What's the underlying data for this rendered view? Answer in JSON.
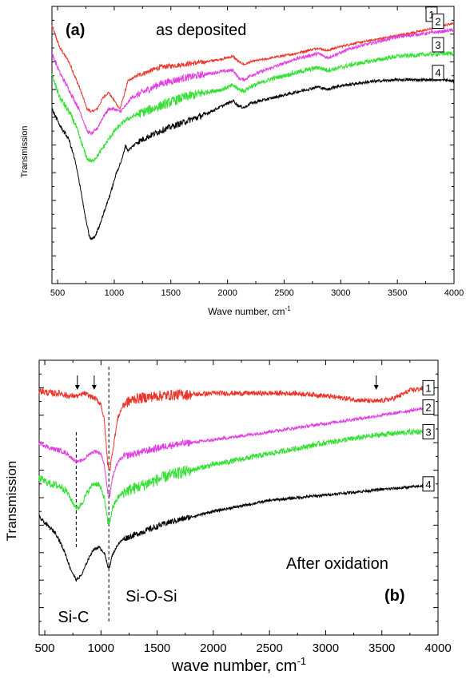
{
  "chart_data": [
    {
      "type": "line",
      "panel_label": "(a)",
      "annotation": "as deposited",
      "xlabel": "Wave number, cm",
      "xlabel_sup": "-1",
      "ylabel": "Transmission",
      "xlim": [
        450,
        4000
      ],
      "ylim": [
        0,
        100
      ],
      "x_ticks": [
        500,
        1000,
        1500,
        2000,
        2500,
        3000,
        3500,
        4000
      ],
      "x_tick_labels": [
        "500",
        "1000",
        "1500",
        "2000",
        "2500",
        "3000",
        "3500",
        "4000"
      ],
      "y_tick_labels_shown": false,
      "grid": false,
      "series": [
        {
          "name": "1",
          "color": "#e8352b",
          "points": [
            [
              450,
              93
            ],
            [
              520,
              85
            ],
            [
              600,
              80
            ],
            [
              650,
              75
            ],
            [
              700,
              70
            ],
            [
              760,
              63
            ],
            [
              800,
              62
            ],
            [
              850,
              63
            ],
            [
              900,
              67
            ],
            [
              950,
              69
            ],
            [
              1000,
              66
            ],
            [
              1050,
              63
            ],
            [
              1080,
              67
            ],
            [
              1120,
              73
            ],
            [
              1200,
              75
            ],
            [
              1400,
              78
            ],
            [
              1600,
              79
            ],
            [
              1800,
              80
            ],
            [
              1950,
              81
            ],
            [
              2050,
              82
            ],
            [
              2100,
              80
            ],
            [
              2150,
              79
            ],
            [
              2200,
              80
            ],
            [
              2400,
              81.5
            ],
            [
              2600,
              83
            ],
            [
              2800,
              85
            ],
            [
              2880,
              84
            ],
            [
              2950,
              85
            ],
            [
              3100,
              86.5
            ],
            [
              3300,
              88
            ],
            [
              3500,
              89.5
            ],
            [
              3700,
              91
            ],
            [
              3900,
              93
            ],
            [
              4000,
              94
            ]
          ],
          "noise": 0.4
        },
        {
          "name": "2",
          "color": "#e040e0",
          "points": [
            [
              450,
              83
            ],
            [
              520,
              76
            ],
            [
              600,
              70
            ],
            [
              650,
              66
            ],
            [
              700,
              62
            ],
            [
              760,
              55
            ],
            [
              800,
              54
            ],
            [
              850,
              56
            ],
            [
              900,
              60
            ],
            [
              950,
              63
            ],
            [
              1000,
              63
            ],
            [
              1050,
              62
            ],
            [
              1100,
              64
            ],
            [
              1150,
              67
            ],
            [
              1200,
              68
            ],
            [
              1400,
              72
            ],
            [
              1600,
              74
            ],
            [
              1800,
              75.5
            ],
            [
              1950,
              76.5
            ],
            [
              2050,
              77
            ],
            [
              2100,
              74
            ],
            [
              2150,
              73.5
            ],
            [
              2200,
              75
            ],
            [
              2400,
              78
            ],
            [
              2600,
              81
            ],
            [
              2800,
              83
            ],
            [
              2880,
              81.5
            ],
            [
              2950,
              82.5
            ],
            [
              3100,
              85
            ],
            [
              3300,
              87
            ],
            [
              3500,
              89
            ],
            [
              3700,
              90
            ],
            [
              3900,
              91
            ],
            [
              4000,
              91.5
            ]
          ],
          "noise": 0.6
        },
        {
          "name": "3",
          "color": "#33e033",
          "points": [
            [
              450,
              75
            ],
            [
              520,
              67
            ],
            [
              600,
              62
            ],
            [
              650,
              58
            ],
            [
              700,
              52
            ],
            [
              760,
              45
            ],
            [
              800,
              44
            ],
            [
              850,
              46
            ],
            [
              900,
              49
            ],
            [
              950,
              52
            ],
            [
              1000,
              55
            ],
            [
              1100,
              59
            ],
            [
              1200,
              61
            ],
            [
              1400,
              64
            ],
            [
              1600,
              67
            ],
            [
              1800,
              69
            ],
            [
              1950,
              70
            ],
            [
              2050,
              71.5
            ],
            [
              2100,
              70
            ],
            [
              2150,
              69.5
            ],
            [
              2200,
              71
            ],
            [
              2400,
              74
            ],
            [
              2600,
              76
            ],
            [
              2800,
              78
            ],
            [
              2880,
              77
            ],
            [
              2950,
              77.5
            ],
            [
              3100,
              79
            ],
            [
              3300,
              80.5
            ],
            [
              3500,
              82
            ],
            [
              3700,
              82.5
            ],
            [
              3900,
              83
            ],
            [
              4000,
              83
            ]
          ],
          "noise": 0.8
        },
        {
          "name": "4",
          "color": "#000000",
          "points": [
            [
              450,
              63
            ],
            [
              520,
              57
            ],
            [
              600,
              52
            ],
            [
              650,
              45
            ],
            [
              700,
              35
            ],
            [
              740,
              25
            ],
            [
              780,
              17
            ],
            [
              800,
              16
            ],
            [
              830,
              17
            ],
            [
              870,
              21
            ],
            [
              920,
              27
            ],
            [
              970,
              33
            ],
            [
              1020,
              40
            ],
            [
              1070,
              45
            ],
            [
              1100,
              50
            ],
            [
              1120,
              48
            ],
            [
              1150,
              49
            ],
            [
              1200,
              51
            ],
            [
              1400,
              55
            ],
            [
              1600,
              58
            ],
            [
              1800,
              61
            ],
            [
              1950,
              64
            ],
            [
              2050,
              66
            ],
            [
              2100,
              64
            ],
            [
              2150,
              63.5
            ],
            [
              2200,
              65
            ],
            [
              2400,
              67
            ],
            [
              2600,
              69
            ],
            [
              2800,
              71
            ],
            [
              2880,
              70
            ],
            [
              2950,
              71
            ],
            [
              3100,
              72
            ],
            [
              3300,
              73
            ],
            [
              3500,
              73.5
            ],
            [
              3700,
              73.5
            ],
            [
              3900,
              73.5
            ],
            [
              4000,
              73
            ]
          ],
          "noise": 0.5
        }
      ]
    },
    {
      "type": "line",
      "panel_label": "(b)",
      "annotation": "After oxidation",
      "xlabel": "wave number, cm",
      "xlabel_sup": "-1",
      "ylabel": "Transmission",
      "xlim": [
        450,
        4000
      ],
      "ylim": [
        0,
        100
      ],
      "x_ticks": [
        500,
        1000,
        1500,
        2000,
        2500,
        3000,
        3500,
        4000
      ],
      "x_tick_labels": [
        "500",
        "1000",
        "1500",
        "2000",
        "2500",
        "3000",
        "3500",
        "4000"
      ],
      "y_tick_labels_shown": false,
      "grid": false,
      "peak_labels": [
        {
          "text": "Si-C",
          "x": 780
        },
        {
          "text": "Si-O-Si",
          "x": 1070
        }
      ],
      "arrow_positions": [
        790,
        940,
        3450
      ],
      "dashed_lines_x": [
        780,
        1070
      ],
      "series": [
        {
          "name": "1",
          "color": "#e8352b",
          "points": [
            [
              450,
              89
            ],
            [
              550,
              88
            ],
            [
              650,
              88
            ],
            [
              700,
              87
            ],
            [
              750,
              87
            ],
            [
              800,
              87
            ],
            [
              850,
              88
            ],
            [
              900,
              87
            ],
            [
              950,
              86
            ],
            [
              1000,
              84
            ],
            [
              1030,
              78
            ],
            [
              1060,
              62
            ],
            [
              1080,
              60
            ],
            [
              1100,
              66
            ],
            [
              1150,
              79
            ],
            [
              1200,
              84
            ],
            [
              1300,
              86
            ],
            [
              1500,
              87
            ],
            [
              1700,
              87.5
            ],
            [
              1800,
              87.5
            ],
            [
              2000,
              88
            ],
            [
              2500,
              88
            ],
            [
              2700,
              88
            ],
            [
              2900,
              87.5
            ],
            [
              3100,
              86.5
            ],
            [
              3300,
              85.5
            ],
            [
              3450,
              85
            ],
            [
              3600,
              86
            ],
            [
              3750,
              89
            ],
            [
              3900,
              90
            ],
            [
              3950,
              90
            ]
          ],
          "noise": 0.9
        },
        {
          "name": "2",
          "color": "#e040e0",
          "points": [
            [
              450,
              70
            ],
            [
              550,
              68
            ],
            [
              650,
              67
            ],
            [
              700,
              66
            ],
            [
              750,
              64
            ],
            [
              800,
              63
            ],
            [
              850,
              64
            ],
            [
              900,
              66
            ],
            [
              950,
              67
            ],
            [
              1000,
              66
            ],
            [
              1030,
              62
            ],
            [
              1060,
              52
            ],
            [
              1080,
              51
            ],
            [
              1100,
              57
            ],
            [
              1150,
              63
            ],
            [
              1200,
              65
            ],
            [
              1400,
              67
            ],
            [
              1600,
              69
            ],
            [
              1800,
              70
            ],
            [
              2000,
              71
            ],
            [
              2500,
              74
            ],
            [
              3000,
              77
            ],
            [
              3500,
              80
            ],
            [
              3800,
              82
            ],
            [
              3950,
              83
            ]
          ],
          "noise": 0.6
        },
        {
          "name": "3",
          "color": "#33e033",
          "points": [
            [
              450,
              57
            ],
            [
              550,
              55
            ],
            [
              650,
              54
            ],
            [
              700,
              52
            ],
            [
              750,
              48
            ],
            [
              790,
              46
            ],
            [
              830,
              48
            ],
            [
              880,
              52
            ],
            [
              930,
              55
            ],
            [
              980,
              55
            ],
            [
              1030,
              50
            ],
            [
              1060,
              41
            ],
            [
              1080,
              41
            ],
            [
              1100,
              46
            ],
            [
              1150,
              50
            ],
            [
              1200,
              52
            ],
            [
              1400,
              55
            ],
            [
              1600,
              58
            ],
            [
              1800,
              60
            ],
            [
              2000,
              62
            ],
            [
              2500,
              66
            ],
            [
              3000,
              70
            ],
            [
              3500,
              73
            ],
            [
              3800,
              74
            ],
            [
              3950,
              74
            ]
          ],
          "noise": 1.0
        },
        {
          "name": "4",
          "color": "#000000",
          "points": [
            [
              450,
              43
            ],
            [
              520,
              40
            ],
            [
              600,
              37
            ],
            [
              680,
              30
            ],
            [
              730,
              24
            ],
            [
              780,
              20
            ],
            [
              830,
              22
            ],
            [
              880,
              27
            ],
            [
              930,
              31
            ],
            [
              980,
              32
            ],
            [
              1030,
              30
            ],
            [
              1060,
              25
            ],
            [
              1080,
              25
            ],
            [
              1100,
              29
            ],
            [
              1150,
              33
            ],
            [
              1200,
              35
            ],
            [
              1400,
              38
            ],
            [
              1600,
              41
            ],
            [
              1800,
              43
            ],
            [
              2000,
              45
            ],
            [
              2500,
              49
            ],
            [
              3000,
              51
            ],
            [
              3500,
              53
            ],
            [
              3800,
              54
            ],
            [
              3950,
              55
            ]
          ],
          "noise": 0.5
        }
      ]
    }
  ]
}
